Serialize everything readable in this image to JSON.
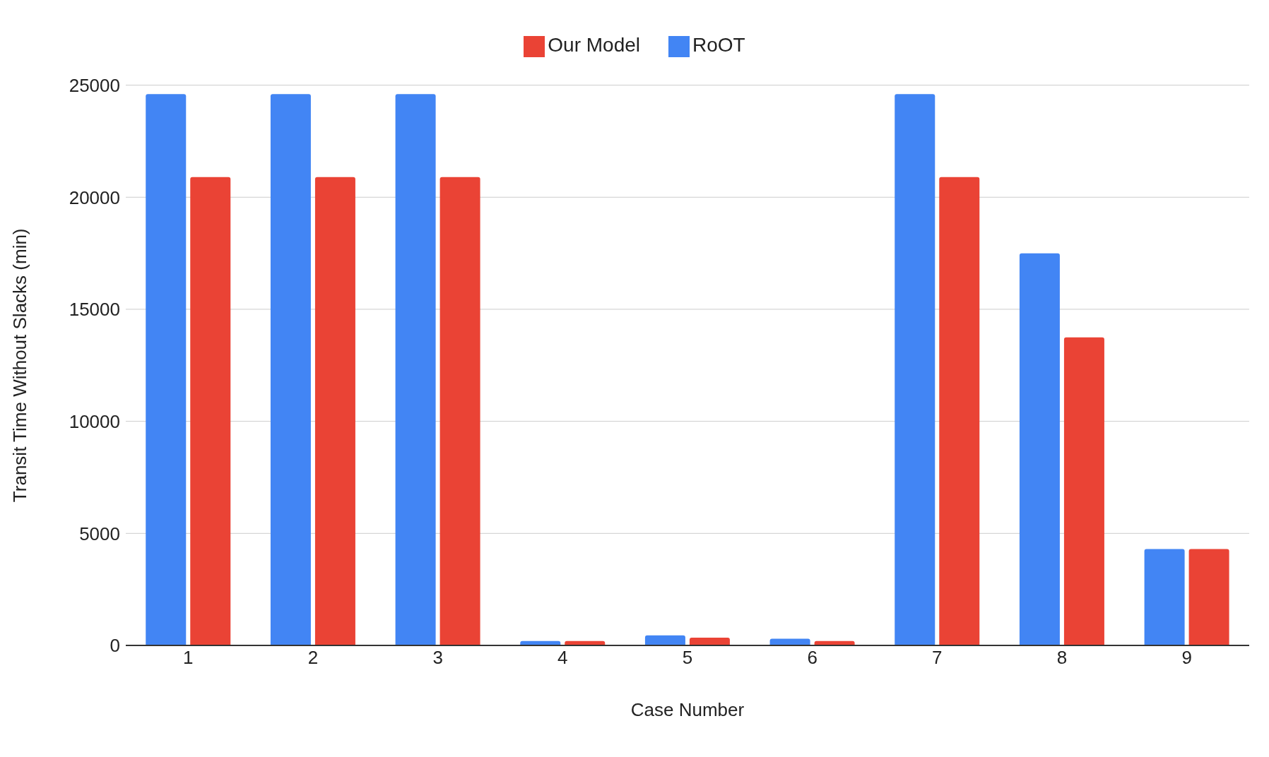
{
  "chart_data": {
    "type": "bar",
    "xlabel": "Case Number",
    "ylabel": "Transit Time Without Slacks (min)",
    "categories": [
      "1",
      "2",
      "3",
      "4",
      "5",
      "6",
      "7",
      "8",
      "9"
    ],
    "series": [
      {
        "name": "RoOT",
        "color": "#4285f4",
        "values": [
          24600,
          24600,
          24600,
          200,
          450,
          300,
          24600,
          17500,
          4300
        ]
      },
      {
        "name": "Our Model",
        "color": "#ea4335",
        "values": [
          20900,
          20900,
          20900,
          200,
          350,
          200,
          20900,
          13750,
          4300
        ]
      }
    ],
    "ylim": [
      0,
      25000
    ],
    "yticks": [
      0,
      5000,
      10000,
      15000,
      20000,
      25000
    ],
    "grid": "y",
    "legend": "top"
  }
}
